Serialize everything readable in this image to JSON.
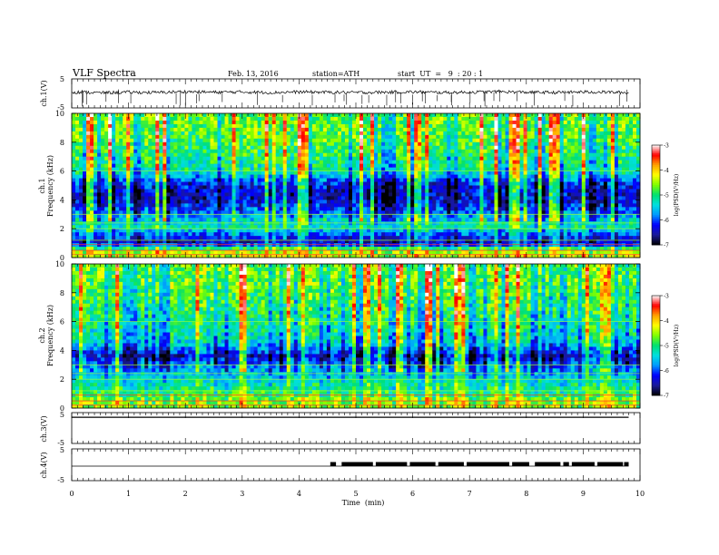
{
  "header": {
    "title": "VLF  Spectra",
    "date": "Feb. 13, 2016",
    "station": "station=ATH",
    "start_ut": "start  UT  =   9  : 20 : 1"
  },
  "colorbar": {
    "label": "log(PSD(V²/Hz)",
    "ticks": [
      "-3",
      "-4",
      "-5",
      "-6",
      "-7"
    ],
    "colors": [
      "#000000",
      "#1a1a9a",
      "#0000ff",
      "#0099ff",
      "#00e0e0",
      "#00e070",
      "#7fff00",
      "#ffff00",
      "#ffa000",
      "#ff0000",
      "#ffffff"
    ]
  },
  "chart_data": [
    {
      "type": "line",
      "panel": "ch1-waveform",
      "ylabel": "ch.1(V)",
      "ylim": [
        -5,
        5
      ],
      "yticks": [
        "5",
        "-5"
      ],
      "x": [
        0,
        0.5,
        1,
        1.5,
        2,
        2.5,
        3,
        3.5,
        4,
        4.5,
        5,
        5.5,
        6,
        6.5,
        7,
        7.5,
        8,
        8.5,
        9,
        9.5,
        9.8
      ],
      "y": [
        0.5,
        0.2,
        0.4,
        0.3,
        0.6,
        0.4,
        0.5,
        0.3,
        0.5,
        0.4,
        0.3,
        0.4,
        0.5,
        0.3,
        0.4,
        0.6,
        0.4,
        0.3,
        0.5,
        0.4,
        0.2
      ]
    },
    {
      "type": "heatmap",
      "panel": "ch1-spectrogram",
      "ylabel": "ch.1",
      "ylabel2": "Frequency (kHz)",
      "ylim": [
        0,
        10
      ],
      "yticks": [
        "0",
        "2",
        "4",
        "6",
        "8",
        "10"
      ],
      "xlim": [
        0,
        10
      ],
      "zlim": [
        -7,
        -3
      ],
      "zlabel": "log(PSD(V²/Hz)",
      "freq_band_levels": [
        {
          "f": 0.5,
          "level": -4.5
        },
        {
          "f": 1.0,
          "level": -6.6
        },
        {
          "f": 1.5,
          "level": -6.2
        },
        {
          "f": 2.2,
          "level": -5.2
        },
        {
          "f": 3.0,
          "level": -6.0
        },
        {
          "f": 4.0,
          "level": -6.6
        },
        {
          "f": 5.0,
          "level": -6.5
        },
        {
          "f": 6.0,
          "level": -5.4
        },
        {
          "f": 7.0,
          "level": -5.2
        },
        {
          "f": 8.0,
          "level": -5.0
        },
        {
          "f": 9.0,
          "level": -4.9
        },
        {
          "f": 10.0,
          "level": -4.9
        }
      ]
    },
    {
      "type": "heatmap",
      "panel": "ch2-spectrogram",
      "ylabel": "ch.2",
      "ylabel2": "Frequency (kHz)",
      "ylim": [
        0,
        10
      ],
      "yticks": [
        "0",
        "2",
        "4",
        "6",
        "8",
        "10"
      ],
      "xlim": [
        0,
        10
      ],
      "zlim": [
        -7,
        -3
      ],
      "zlabel": "log(PSD(V²/Hz)",
      "freq_band_levels": [
        {
          "f": 0.5,
          "level": -4.6
        },
        {
          "f": 1.0,
          "level": -5.0
        },
        {
          "f": 2.0,
          "level": -5.4
        },
        {
          "f": 3.0,
          "level": -6.0
        },
        {
          "f": 3.6,
          "level": -6.5
        },
        {
          "f": 4.5,
          "level": -5.6
        },
        {
          "f": 5.5,
          "level": -5.3
        },
        {
          "f": 7.0,
          "level": -5.1
        },
        {
          "f": 8.5,
          "level": -4.9
        },
        {
          "f": 10.0,
          "level": -4.8
        }
      ]
    },
    {
      "type": "line",
      "panel": "ch3-waveform",
      "ylabel": "ch.3(V)",
      "ylim": [
        -5,
        5
      ],
      "yticks": [
        "5",
        "-5"
      ],
      "x": [
        0,
        9.8
      ],
      "y": [
        3.5,
        3.5
      ]
    },
    {
      "type": "line",
      "panel": "ch4-waveform",
      "ylabel": "ch.4(V)",
      "ylim": [
        -5,
        5
      ],
      "yticks": [
        "5",
        "-5"
      ],
      "x": [
        0,
        9.8
      ],
      "y": [
        0,
        0
      ],
      "pulse_segments": [
        [
          4.55,
          4.65
        ],
        [
          4.75,
          5.3
        ],
        [
          5.35,
          5.9
        ],
        [
          5.95,
          6.4
        ],
        [
          6.45,
          6.9
        ],
        [
          6.95,
          7.7
        ],
        [
          7.75,
          8.05
        ],
        [
          8.15,
          8.6
        ],
        [
          8.65,
          8.75
        ],
        [
          8.8,
          9.2
        ],
        [
          9.25,
          9.7
        ],
        [
          9.72,
          9.8
        ]
      ]
    },
    {
      "type": "axis",
      "panel": "time-axis",
      "xlabel": "Time  (min)",
      "xlim": [
        0,
        10
      ],
      "xticks": [
        "0",
        "1",
        "2",
        "3",
        "4",
        "5",
        "6",
        "7",
        "8",
        "9",
        "10"
      ]
    }
  ]
}
